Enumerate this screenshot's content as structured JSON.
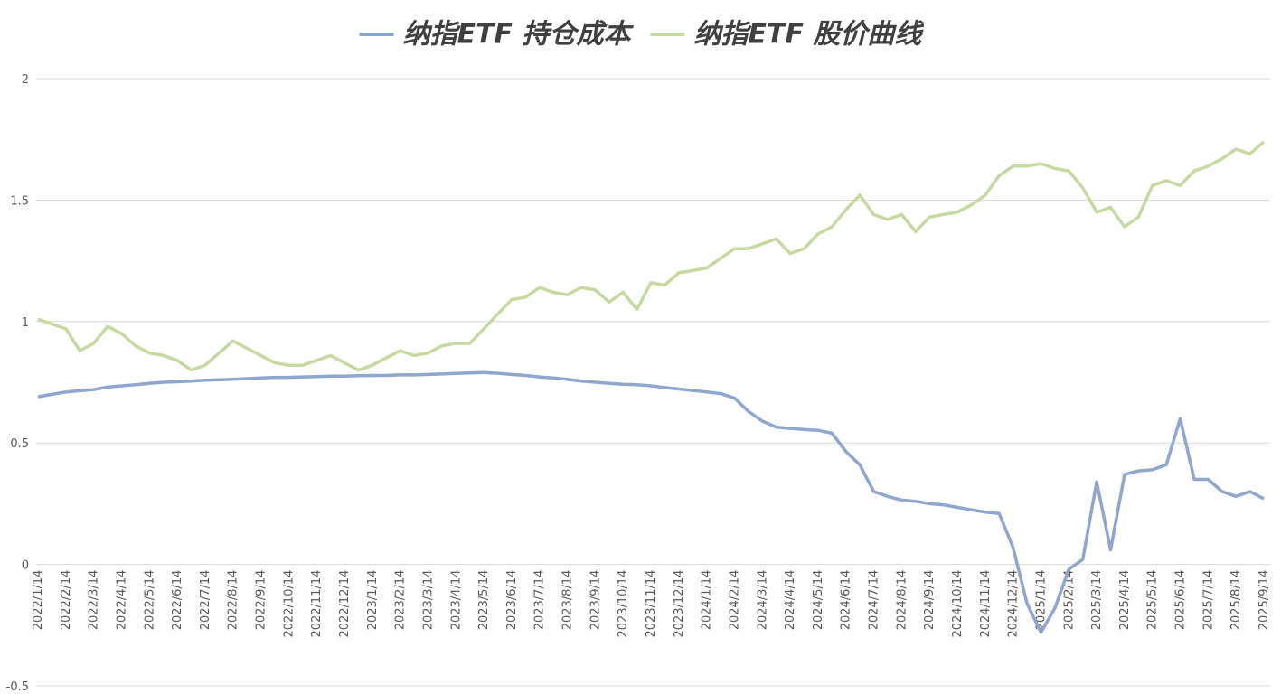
{
  "chart_data": {
    "type": "line",
    "categories": [
      "2022/1/14",
      null,
      "2022/2/14",
      null,
      "2022/3/14",
      null,
      "2022/4/14",
      null,
      "2022/5/14",
      null,
      "2022/6/14",
      null,
      "2022/7/14",
      null,
      "2022/8/14",
      null,
      "2022/9/14",
      null,
      "2022/10/14",
      null,
      "2022/11/14",
      null,
      "2022/12/14",
      null,
      "2023/1/14",
      null,
      "2023/2/14",
      null,
      "2023/3/14",
      null,
      "2023/4/14",
      null,
      "2023/5/14",
      null,
      "2023/6/14",
      null,
      "2023/7/14",
      null,
      "2023/8/14",
      null,
      "2023/9/14",
      null,
      "2023/10/14",
      null,
      "2023/11/14",
      null,
      "2023/12/14",
      null,
      "2024/1/14",
      null,
      "2024/2/14",
      null,
      "2024/3/14",
      null,
      "2024/4/14",
      null,
      "2024/5/14",
      null,
      "2024/6/14",
      null,
      "2024/7/14",
      null,
      "2024/8/14",
      null,
      "2024/9/14",
      null,
      "2024/10/14",
      null,
      "2024/11/14",
      null,
      "2024/12/14",
      null,
      "2025/1/14",
      null,
      "2025/2/14",
      null,
      "2025/3/14",
      null,
      "2025/4/14",
      null,
      "2025/5/14",
      null,
      "2025/6/14",
      null,
      "2025/7/14",
      null,
      "2025/8/14",
      null,
      "2025/9/14"
    ],
    "series": [
      {
        "name": "纳指ETF 持仓成本",
        "color": "#8fa6cf",
        "values": [
          0.69,
          0.7,
          0.71,
          0.715,
          0.72,
          0.73,
          0.735,
          0.74,
          0.745,
          0.75,
          0.752,
          0.755,
          0.758,
          0.76,
          0.762,
          0.765,
          0.768,
          0.77,
          0.77,
          0.772,
          0.773,
          0.775,
          0.775,
          0.777,
          0.778,
          0.778,
          0.78,
          0.78,
          0.782,
          0.784,
          0.786,
          0.788,
          0.79,
          0.787,
          0.782,
          0.778,
          0.772,
          0.768,
          0.762,
          0.755,
          0.75,
          0.745,
          0.742,
          0.74,
          0.735,
          0.728,
          0.722,
          0.716,
          0.71,
          0.703,
          0.685,
          0.63,
          0.59,
          0.565,
          0.56,
          0.555,
          0.552,
          0.54,
          0.465,
          0.41,
          0.3,
          0.28,
          0.265,
          0.26,
          0.25,
          0.245,
          0.235,
          0.225,
          0.215,
          0.21,
          0.07,
          -0.16,
          -0.28,
          -0.18,
          -0.02,
          0.02,
          0.34,
          0.06,
          0.37,
          0.385,
          0.39,
          0.41,
          0.6,
          0.35,
          0.35,
          0.3,
          0.28,
          0.3,
          0.27
        ]
      },
      {
        "name": "纳指ETF 股价曲线",
        "color": "#c6d9a0",
        "values": [
          1.01,
          0.99,
          0.97,
          0.88,
          0.91,
          0.98,
          0.95,
          0.9,
          0.87,
          0.86,
          0.84,
          0.8,
          0.82,
          0.87,
          0.92,
          0.89,
          0.86,
          0.83,
          0.82,
          0.82,
          0.84,
          0.86,
          0.83,
          0.8,
          0.82,
          0.85,
          0.88,
          0.86,
          0.87,
          0.9,
          0.91,
          0.91,
          0.97,
          1.03,
          1.09,
          1.1,
          1.14,
          1.12,
          1.11,
          1.14,
          1.13,
          1.08,
          1.12,
          1.05,
          1.16,
          1.15,
          1.2,
          1.21,
          1.22,
          1.26,
          1.3,
          1.3,
          1.32,
          1.34,
          1.28,
          1.3,
          1.36,
          1.39,
          1.46,
          1.52,
          1.44,
          1.42,
          1.44,
          1.37,
          1.43,
          1.44,
          1.45,
          1.48,
          1.52,
          1.6,
          1.64,
          1.64,
          1.65,
          1.63,
          1.62,
          1.55,
          1.45,
          1.47,
          1.39,
          1.43,
          1.56,
          1.58,
          1.56,
          1.62,
          1.64,
          1.67,
          1.71,
          1.69,
          1.74
        ]
      }
    ],
    "ylim": [
      -0.5,
      2
    ],
    "yticks": [
      -0.5,
      0,
      0.5,
      1,
      1.5,
      2
    ],
    "grid": true,
    "legend": "top"
  }
}
